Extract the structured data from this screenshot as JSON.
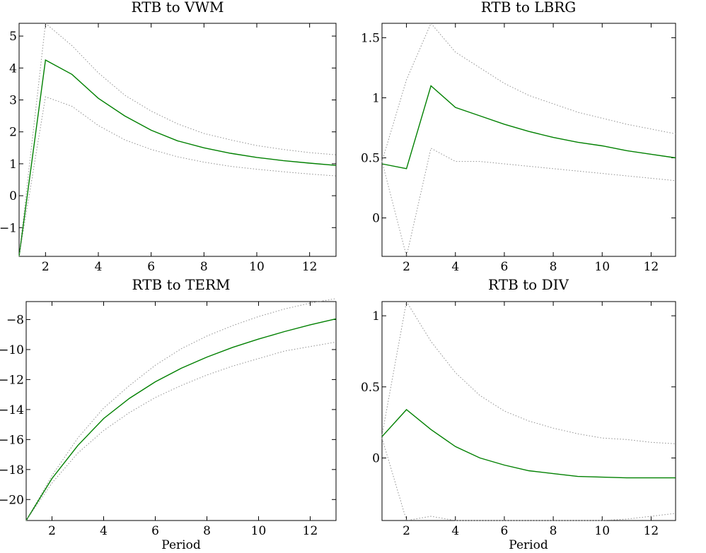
{
  "colors": {
    "estimate": "#008000",
    "band": "#909090",
    "axis": "#000000"
  },
  "chart_data": [
    {
      "type": "line",
      "title": "RTB to VWM",
      "xlabel": "",
      "xlim": [
        1,
        13
      ],
      "ylim": [
        -1.9,
        5.4
      ],
      "xticks": [
        2,
        4,
        6,
        8,
        10,
        12
      ],
      "yticks": [
        -1,
        0,
        1,
        2,
        3,
        4,
        5
      ],
      "x": [
        1,
        2,
        3,
        4,
        5,
        6,
        7,
        8,
        9,
        10,
        11,
        12,
        13
      ],
      "series": [
        {
          "role": "upper",
          "values": [
            -1.9,
            5.4,
            4.7,
            3.85,
            3.15,
            2.65,
            2.25,
            1.95,
            1.75,
            1.57,
            1.45,
            1.35,
            1.28
          ]
        },
        {
          "role": "estimate",
          "values": [
            -1.9,
            4.25,
            3.8,
            3.05,
            2.5,
            2.05,
            1.72,
            1.5,
            1.33,
            1.2,
            1.1,
            1.02,
            0.95
          ]
        },
        {
          "role": "lower",
          "values": [
            -1.9,
            3.1,
            2.8,
            2.2,
            1.75,
            1.45,
            1.22,
            1.05,
            0.92,
            0.83,
            0.75,
            0.68,
            0.62
          ]
        }
      ]
    },
    {
      "type": "line",
      "title": "RTB to LBRG",
      "xlabel": "",
      "xlim": [
        1,
        13
      ],
      "ylim": [
        -0.32,
        1.62
      ],
      "xticks": [
        2,
        4,
        6,
        8,
        10,
        12
      ],
      "yticks": [
        0,
        0.5,
        1,
        1.5
      ],
      "x": [
        1,
        2,
        3,
        4,
        5,
        6,
        7,
        8,
        9,
        10,
        11,
        12,
        13
      ],
      "series": [
        {
          "role": "upper",
          "values": [
            0.47,
            1.15,
            1.62,
            1.38,
            1.25,
            1.12,
            1.02,
            0.95,
            0.88,
            0.83,
            0.78,
            0.74,
            0.7
          ]
        },
        {
          "role": "estimate",
          "values": [
            0.45,
            0.41,
            1.1,
            0.92,
            0.85,
            0.78,
            0.72,
            0.67,
            0.63,
            0.6,
            0.56,
            0.53,
            0.5
          ]
        },
        {
          "role": "lower",
          "values": [
            0.47,
            -0.32,
            0.58,
            0.47,
            0.47,
            0.45,
            0.43,
            0.41,
            0.39,
            0.37,
            0.35,
            0.33,
            0.31
          ]
        }
      ]
    },
    {
      "type": "line",
      "title": "RTB to TERM",
      "xlabel": "Period",
      "xlim": [
        1,
        13
      ],
      "ylim": [
        -21.4,
        -6.8
      ],
      "xticks": [
        2,
        4,
        6,
        8,
        10,
        12
      ],
      "yticks": [
        -20,
        -18,
        -16,
        -14,
        -12,
        -10,
        -8
      ],
      "x": [
        1,
        2,
        3,
        4,
        5,
        6,
        7,
        8,
        9,
        10,
        11,
        12,
        13
      ],
      "series": [
        {
          "role": "upper",
          "values": [
            -21.4,
            -18.4,
            -15.9,
            -13.9,
            -12.4,
            -11.05,
            -9.95,
            -9.1,
            -8.4,
            -7.8,
            -7.3,
            -6.9,
            -6.6
          ]
        },
        {
          "role": "estimate",
          "values": [
            -21.4,
            -18.6,
            -16.4,
            -14.6,
            -13.25,
            -12.15,
            -11.25,
            -10.5,
            -9.85,
            -9.3,
            -8.8,
            -8.35,
            -7.95
          ]
        },
        {
          "role": "lower",
          "values": [
            -21.4,
            -18.9,
            -16.9,
            -15.4,
            -14.2,
            -13.2,
            -12.4,
            -11.7,
            -11.1,
            -10.6,
            -10.1,
            -9.8,
            -9.5
          ]
        }
      ]
    },
    {
      "type": "line",
      "title": "RTB to DIV",
      "xlabel": "Period",
      "xlim": [
        1,
        13
      ],
      "ylim": [
        -0.44,
        1.1
      ],
      "xticks": [
        2,
        4,
        6,
        8,
        10,
        12
      ],
      "yticks": [
        0,
        0.5,
        1
      ],
      "x": [
        1,
        2,
        3,
        4,
        5,
        6,
        7,
        8,
        9,
        10,
        11,
        12,
        13
      ],
      "series": [
        {
          "role": "upper",
          "values": [
            0.16,
            1.1,
            0.82,
            0.6,
            0.44,
            0.33,
            0.26,
            0.21,
            0.17,
            0.14,
            0.13,
            0.11,
            0.1
          ]
        },
        {
          "role": "estimate",
          "values": [
            0.15,
            0.34,
            0.2,
            0.08,
            0.0,
            -0.05,
            -0.09,
            -0.11,
            -0.13,
            -0.135,
            -0.14,
            -0.14,
            -0.14
          ]
        },
        {
          "role": "lower",
          "values": [
            0.14,
            -0.44,
            -0.41,
            -0.44,
            -0.44,
            -0.44,
            -0.44,
            -0.44,
            -0.44,
            -0.44,
            -0.43,
            -0.41,
            -0.39
          ]
        }
      ]
    }
  ]
}
